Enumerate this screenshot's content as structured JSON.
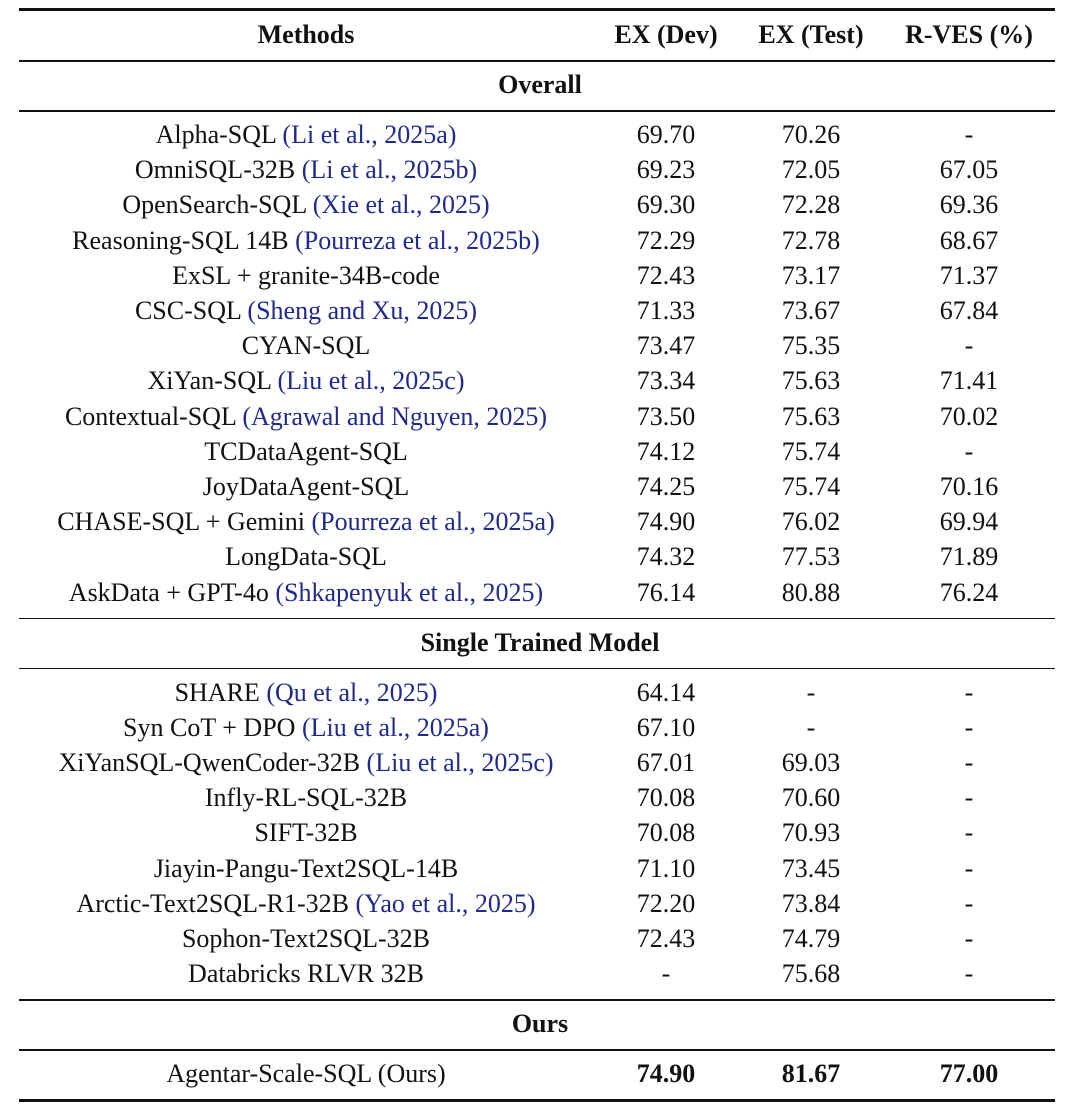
{
  "header": [
    "Methods",
    "EX (Dev)",
    "EX (Test)",
    "R-VES (%)"
  ],
  "sections": [
    {
      "title": "Overall",
      "rows": [
        {
          "method": "Alpha-SQL",
          "ref": "(Li et al., 2025a)",
          "cells": [
            "69.70",
            "70.26",
            "-"
          ]
        },
        {
          "method": "OmniSQL-32B",
          "ref": "(Li et al., 2025b)",
          "cells": [
            "69.23",
            "72.05",
            "67.05"
          ]
        },
        {
          "method": "OpenSearch-SQL",
          "ref": "(Xie et al., 2025)",
          "cells": [
            "69.30",
            "72.28",
            "69.36"
          ]
        },
        {
          "method": "Reasoning-SQL 14B",
          "ref": "(Pourreza et al., 2025b)",
          "cells": [
            "72.29",
            "72.78",
            "68.67"
          ]
        },
        {
          "method": "ExSL + granite-34B-code",
          "cells": [
            "72.43",
            "73.17",
            "71.37"
          ]
        },
        {
          "method": "CSC-SQL",
          "ref": "(Sheng and Xu, 2025)",
          "cells": [
            "71.33",
            "73.67",
            "67.84"
          ]
        },
        {
          "method": "CYAN-SQL",
          "cells": [
            "73.47",
            "75.35",
            "-"
          ]
        },
        {
          "method": "XiYan-SQL",
          "ref": "(Liu et al., 2025c)",
          "cells": [
            "73.34",
            "75.63",
            "71.41"
          ]
        },
        {
          "method": "Contextual-SQL",
          "ref": "(Agrawal and Nguyen, 2025)",
          "cells": [
            "73.50",
            "75.63",
            "70.02"
          ]
        },
        {
          "method": "TCDataAgent-SQL",
          "cells": [
            "74.12",
            "75.74",
            "-"
          ]
        },
        {
          "method": "JoyDataAgent-SQL",
          "cells": [
            "74.25",
            "75.74",
            "70.16"
          ]
        },
        {
          "method": "CHASE-SQL + Gemini",
          "ref": "(Pourreza et al., 2025a)",
          "cells": [
            "74.90",
            "76.02",
            "69.94"
          ]
        },
        {
          "method": "LongData-SQL",
          "cells": [
            "74.32",
            "77.53",
            "71.89"
          ]
        },
        {
          "method": "AskData + GPT-4o",
          "ref": "(Shkapenyuk et al., 2025)",
          "cells": [
            "76.14",
            "80.88",
            "76.24"
          ]
        }
      ]
    },
    {
      "title": "Single Trained Model",
      "rows": [
        {
          "method": "SHARE",
          "ref": "(Qu et al., 2025)",
          "cells": [
            "64.14",
            "-",
            "-"
          ]
        },
        {
          "method": "Syn CoT + DPO",
          "ref": "(Liu et al., 2025a)",
          "cells": [
            "67.10",
            "-",
            "-"
          ]
        },
        {
          "method": "XiYanSQL-QwenCoder-32B",
          "ref": "(Liu et al., 2025c)",
          "cells": [
            "67.01",
            "69.03",
            "-"
          ]
        },
        {
          "method": "Infly-RL-SQL-32B",
          "cells": [
            "70.08",
            "70.60",
            "-"
          ]
        },
        {
          "method": "SIFT-32B",
          "cells": [
            "70.08",
            "70.93",
            "-"
          ]
        },
        {
          "method": "Jiayin-Pangu-Text2SQL-14B",
          "cells": [
            "71.10",
            "73.45",
            "-"
          ]
        },
        {
          "method": "Arctic-Text2SQL-R1-32B",
          "ref": "(Yao et al., 2025)",
          "cells": [
            "72.20",
            "73.84",
            "-"
          ]
        },
        {
          "method": "Sophon-Text2SQL-32B",
          "cells": [
            "72.43",
            "74.79",
            "-"
          ]
        },
        {
          "method": "Databricks RLVR 32B",
          "cells": [
            "-",
            "75.68",
            "-"
          ]
        }
      ]
    },
    {
      "title": "Ours",
      "rows": [
        {
          "method": "Agentar-Scale-SQL (Ours)",
          "cells": [
            "74.90",
            "81.67",
            "77.00"
          ],
          "bold": true
        }
      ]
    }
  ]
}
